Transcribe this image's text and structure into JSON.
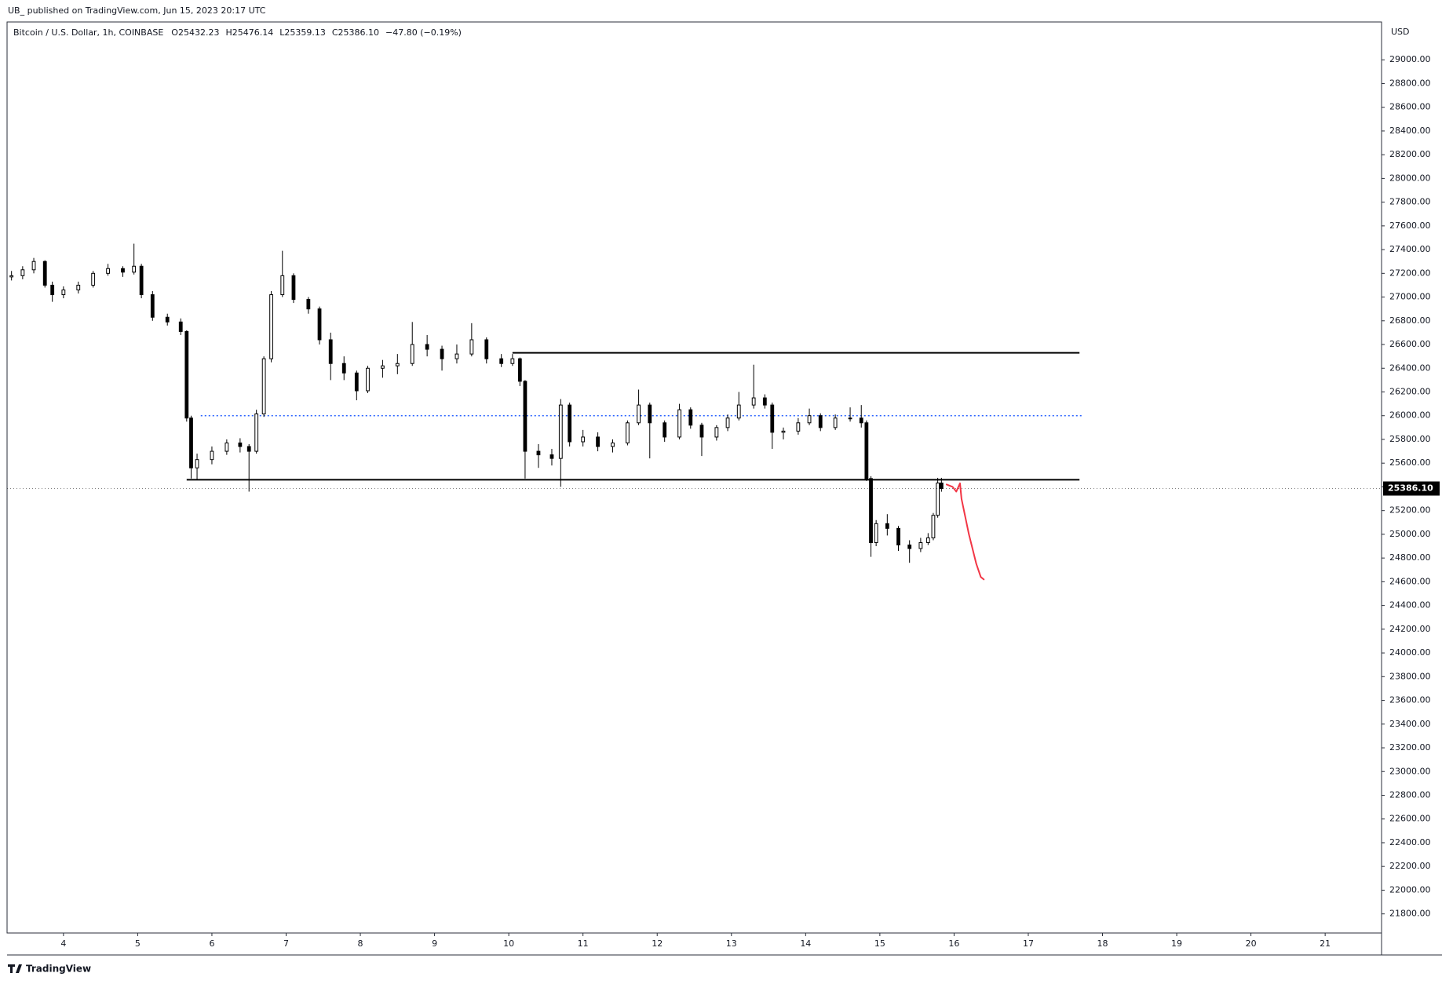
{
  "header": "UB_ published on TradingView.com, Jun 15, 2023 20:17 UTC",
  "footer": "TradingView",
  "chart_data": {
    "type": "candlestick",
    "symbol": "Bitcoin / U.S. Dollar, 1h, COINBASE",
    "legend_items": [
      "O25432.23",
      "H25476.14",
      "L25359.13",
      "C25386.10",
      "−47.80 (−0.19%)"
    ],
    "currency": "USD",
    "up_color": "#ffffff",
    "down_color": "#000000",
    "border_color": "#000000",
    "x": [
      3.3,
      3.45,
      3.6,
      3.75,
      3.85,
      4.0,
      4.2,
      4.4,
      4.6,
      4.8,
      4.95,
      5.05,
      5.2,
      5.4,
      5.58,
      5.66,
      5.72,
      5.8,
      6.0,
      6.2,
      6.38,
      6.5,
      6.6,
      6.7,
      6.8,
      6.95,
      7.1,
      7.3,
      7.45,
      7.6,
      7.78,
      7.95,
      8.1,
      8.3,
      8.5,
      8.7,
      8.9,
      9.1,
      9.3,
      9.5,
      9.7,
      9.9,
      10.05,
      10.15,
      10.22,
      10.4,
      10.58,
      10.7,
      10.82,
      11.0,
      11.2,
      11.4,
      11.6,
      11.75,
      11.9,
      12.1,
      12.3,
      12.45,
      12.6,
      12.8,
      12.95,
      13.1,
      13.3,
      13.45,
      13.55,
      13.7,
      13.9,
      14.05,
      14.2,
      14.4,
      14.6,
      14.75,
      14.82,
      14.88,
      14.95,
      15.1,
      15.25,
      15.4,
      15.55,
      15.65,
      15.72,
      15.78,
      15.83
    ],
    "ohlc": [
      [
        27170,
        27220,
        27140,
        27180
      ],
      [
        27180,
        27260,
        27150,
        27230
      ],
      [
        27230,
        27330,
        27200,
        27300
      ],
      [
        27300,
        27310,
        27080,
        27100
      ],
      [
        27100,
        27130,
        26960,
        27020
      ],
      [
        27020,
        27090,
        26990,
        27060
      ],
      [
        27060,
        27130,
        27030,
        27100
      ],
      [
        27100,
        27220,
        27080,
        27200
      ],
      [
        27200,
        27280,
        27180,
        27240
      ],
      [
        27240,
        27260,
        27170,
        27210
      ],
      [
        27210,
        27450,
        27190,
        27260
      ],
      [
        27260,
        27280,
        26990,
        27020
      ],
      [
        27020,
        27050,
        26800,
        26830
      ],
      [
        26830,
        26860,
        26760,
        26790
      ],
      [
        26790,
        26820,
        26680,
        26710
      ],
      [
        26710,
        26720,
        25950,
        25980
      ],
      [
        25980,
        26000,
        25470,
        25560
      ],
      [
        25560,
        25680,
        25460,
        25630
      ],
      [
        25630,
        25740,
        25590,
        25700
      ],
      [
        25700,
        25800,
        25670,
        25770
      ],
      [
        25770,
        25810,
        25690,
        25740
      ],
      [
        25740,
        25760,
        25360,
        25700
      ],
      [
        25700,
        26050,
        25680,
        26015
      ],
      [
        26015,
        26500,
        25990,
        26480
      ],
      [
        26480,
        27050,
        26450,
        27020
      ],
      [
        27020,
        27390,
        27000,
        27180
      ],
      [
        27180,
        27200,
        26950,
        26980
      ],
      [
        26980,
        27000,
        26860,
        26900
      ],
      [
        26900,
        26920,
        26600,
        26640
      ],
      [
        26640,
        26700,
        26300,
        26440
      ],
      [
        26440,
        26500,
        26300,
        26360
      ],
      [
        26360,
        26380,
        26130,
        26210
      ],
      [
        26210,
        26420,
        26190,
        26400
      ],
      [
        26400,
        26470,
        26320,
        26420
      ],
      [
        26420,
        26520,
        26350,
        26440
      ],
      [
        26440,
        26790,
        26420,
        26600
      ],
      [
        26600,
        26680,
        26500,
        26560
      ],
      [
        26560,
        26590,
        26380,
        26480
      ],
      [
        26480,
        26600,
        26440,
        26520
      ],
      [
        26520,
        26780,
        26500,
        26640
      ],
      [
        26640,
        26660,
        26440,
        26480
      ],
      [
        26480,
        26520,
        26410,
        26440
      ],
      [
        26440,
        26520,
        26420,
        26480
      ],
      [
        26480,
        26490,
        26250,
        26290
      ],
      [
        26290,
        26300,
        25470,
        25700
      ],
      [
        25700,
        25760,
        25560,
        25670
      ],
      [
        25670,
        25720,
        25580,
        25640
      ],
      [
        25640,
        26140,
        25400,
        26090
      ],
      [
        26090,
        26110,
        25740,
        25780
      ],
      [
        25780,
        25880,
        25740,
        25820
      ],
      [
        25820,
        25860,
        25700,
        25740
      ],
      [
        25740,
        25800,
        25690,
        25770
      ],
      [
        25770,
        25960,
        25750,
        25940
      ],
      [
        25940,
        26220,
        25920,
        26090
      ],
      [
        26090,
        26110,
        25640,
        25940
      ],
      [
        25940,
        25960,
        25780,
        25820
      ],
      [
        25820,
        26100,
        25800,
        26050
      ],
      [
        26050,
        26070,
        25890,
        25920
      ],
      [
        25920,
        25940,
        25660,
        25820
      ],
      [
        25820,
        25920,
        25790,
        25900
      ],
      [
        25900,
        26010,
        25870,
        25980
      ],
      [
        25980,
        26200,
        25960,
        26090
      ],
      [
        26090,
        26430,
        26060,
        26150
      ],
      [
        26150,
        26180,
        26060,
        26090
      ],
      [
        26090,
        26110,
        25720,
        25860
      ],
      [
        25860,
        25900,
        25800,
        25870
      ],
      [
        25870,
        25980,
        25840,
        25940
      ],
      [
        25940,
        26060,
        25920,
        26000
      ],
      [
        26000,
        26020,
        25870,
        25900
      ],
      [
        25900,
        26010,
        25880,
        25980
      ],
      [
        25980,
        26070,
        25950,
        25980
      ],
      [
        25980,
        26090,
        25900,
        25940
      ],
      [
        25940,
        25960,
        25450,
        25470
      ],
      [
        25470,
        25490,
        24810,
        24930
      ],
      [
        24930,
        25120,
        24900,
        25090
      ],
      [
        25090,
        25170,
        24990,
        25050
      ],
      [
        25050,
        25070,
        24860,
        24910
      ],
      [
        24910,
        24950,
        24760,
        24880
      ],
      [
        24880,
        24970,
        24850,
        24930
      ],
      [
        24930,
        25010,
        24910,
        24970
      ],
      [
        24970,
        25180,
        24950,
        25160
      ],
      [
        25160,
        25476,
        25140,
        25432
      ],
      [
        25432.23,
        25476.14,
        25359.13,
        25386.1
      ]
    ],
    "last_price": {
      "value": 25386.1,
      "label": "25386.10"
    },
    "levels": [
      {
        "value": 26530,
        "from": 10.05,
        "to": 17.69,
        "style": "solid",
        "color": "#000000"
      },
      {
        "value": 25460,
        "from": 5.66,
        "to": 17.69,
        "style": "solid",
        "color": "#000000"
      },
      {
        "value": 26000,
        "from": 5.85,
        "to": 17.72,
        "style": "dotted",
        "color": "#2962ff"
      }
    ],
    "prediction": {
      "color": "#f23645",
      "x": [
        15.9,
        15.98,
        16.03,
        16.08,
        16.1,
        16.2,
        16.3,
        16.36,
        16.4
      ],
      "y": [
        25420,
        25400,
        25360,
        25430,
        25300,
        25000,
        24750,
        24640,
        24620
      ]
    },
    "xlim": [
      3.24,
      21.76
    ],
    "xticks": [
      4,
      5,
      6,
      7,
      8,
      9,
      10,
      11,
      12,
      13,
      14,
      15,
      16,
      17,
      18,
      19,
      20,
      21
    ],
    "ylim": [
      21639,
      29319
    ],
    "yticks": [
      {
        "value": 21800,
        "label": "21800.00"
      },
      {
        "value": 22000,
        "label": "22000.00"
      },
      {
        "value": 22200,
        "label": "22200.00"
      },
      {
        "value": 22400,
        "label": "22400.00"
      },
      {
        "value": 22600,
        "label": "22600.00"
      },
      {
        "value": 22800,
        "label": "22800.00"
      },
      {
        "value": 23000,
        "label": "23000.00"
      },
      {
        "value": 23200,
        "label": "23200.00"
      },
      {
        "value": 23400,
        "label": "23400.00"
      },
      {
        "value": 23600,
        "label": "23600.00"
      },
      {
        "value": 23800,
        "label": "23800.00"
      },
      {
        "value": 24000,
        "label": "24000.00"
      },
      {
        "value": 24200,
        "label": "24200.00"
      },
      {
        "value": 24400,
        "label": "24400.00"
      },
      {
        "value": 24600,
        "label": "24600.00"
      },
      {
        "value": 24800,
        "label": "24800.00"
      },
      {
        "value": 25000,
        "label": "25000.00"
      },
      {
        "value": 25200,
        "label": "25200.00"
      },
      {
        "value": 25400,
        "label": "25400.00"
      },
      {
        "value": 25600,
        "label": "25600.00"
      },
      {
        "value": 25800,
        "label": "25800.00"
      },
      {
        "value": 26000,
        "label": "26000.00"
      },
      {
        "value": 26200,
        "label": "26200.00"
      },
      {
        "value": 26400,
        "label": "26400.00"
      },
      {
        "value": 26600,
        "label": "26600.00"
      },
      {
        "value": 26800,
        "label": "26800.00"
      },
      {
        "value": 27000,
        "label": "27000.00"
      },
      {
        "value": 27200,
        "label": "27200.00"
      },
      {
        "value": 27400,
        "label": "27400.00"
      },
      {
        "value": 27600,
        "label": "27600.00"
      },
      {
        "value": 27800,
        "label": "27800.00"
      },
      {
        "value": 28000,
        "label": "28000.00"
      },
      {
        "value": 28200,
        "label": "28200.00"
      },
      {
        "value": 28400,
        "label": "28400.00"
      },
      {
        "value": 28600,
        "label": "28600.00"
      },
      {
        "value": 28800,
        "label": "28800.00"
      },
      {
        "value": 29000,
        "label": "29000.00"
      }
    ]
  }
}
